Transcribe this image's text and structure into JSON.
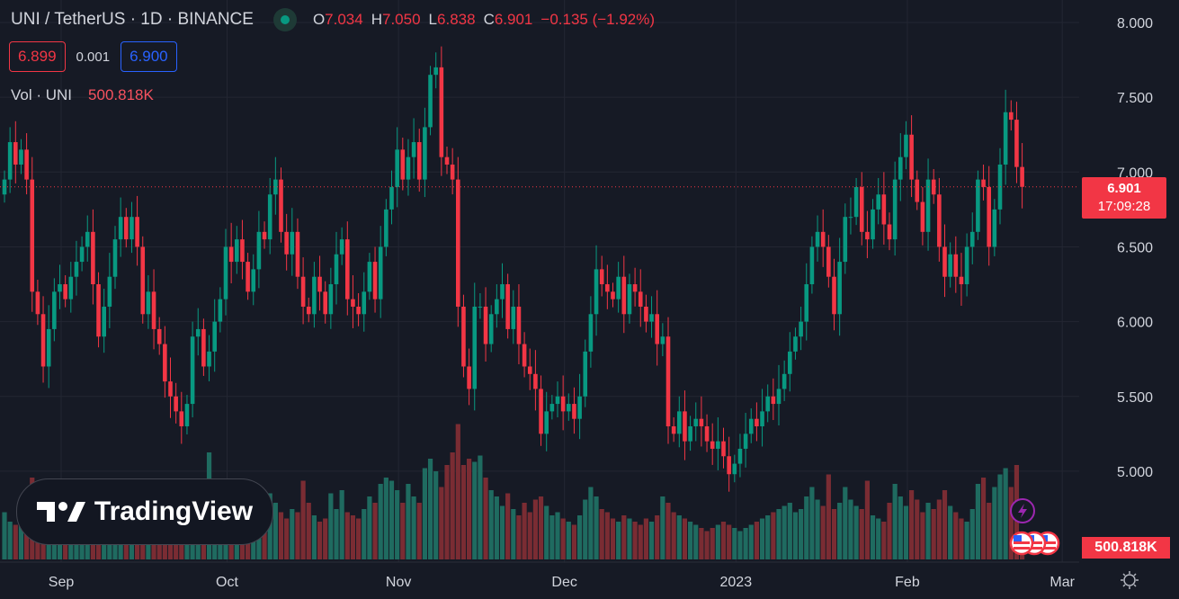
{
  "header": {
    "symbol": "UNI / TetherUS · 1D · BINANCE",
    "ohlc": {
      "o_label": "O",
      "o": "7.034",
      "h_label": "H",
      "h": "7.050",
      "l_label": "L",
      "l": "6.838",
      "c_label": "C",
      "c": "6.901",
      "change": "−0.135 (−1.92%)"
    },
    "bid": "6.899",
    "spread": "0.001",
    "ask": "6.900",
    "volume_label": "Vol · UNI",
    "volume_value": "500.818K"
  },
  "logo_text": "TradingView",
  "price_tag": {
    "price": "6.901",
    "countdown": "17:09:28"
  },
  "volume_tag": "500.818K",
  "colors": {
    "background": "#161a25",
    "grid": "#232632",
    "up": "#089981",
    "down": "#f23645",
    "up_vol": "#1f6b60",
    "down_vol": "#7a2c33"
  },
  "chart_data": {
    "type": "candlestick",
    "title": "UNI / TetherUS · 1D · BINANCE",
    "ylim": [
      4.85,
      8.1
    ],
    "y_ticks": [
      "8.000",
      "7.500",
      "7.000",
      "6.500",
      "6.000",
      "5.500",
      "5.000"
    ],
    "y_tick_values": [
      8.0,
      7.5,
      7.0,
      6.5,
      6.0,
      5.5,
      5.0
    ],
    "x_ticks": [
      {
        "label": "Sep",
        "day": 11
      },
      {
        "label": "Oct",
        "day": 41
      },
      {
        "label": "Nov",
        "day": 72
      },
      {
        "label": "Dec",
        "day": 102
      },
      {
        "label": "2023",
        "day": 133
      },
      {
        "label": "Feb",
        "day": 164
      },
      {
        "label": "Mar",
        "day": 192
      }
    ],
    "first_open": 6.85,
    "close": [
      6.95,
      7.2,
      7.05,
      7.15,
      6.95,
      6.2,
      6.05,
      5.7,
      5.95,
      6.2,
      6.25,
      6.15,
      6.3,
      6.4,
      6.5,
      6.6,
      6.25,
      5.9,
      6.1,
      6.3,
      6.55,
      6.7,
      6.55,
      6.7,
      6.5,
      6.05,
      6.2,
      5.95,
      5.85,
      5.6,
      5.5,
      5.4,
      5.3,
      5.45,
      5.9,
      5.95,
      5.7,
      5.8,
      6.0,
      6.15,
      6.5,
      6.4,
      6.55,
      6.4,
      6.2,
      6.35,
      6.6,
      6.55,
      6.85,
      6.95,
      6.6,
      6.45,
      6.6,
      6.3,
      6.1,
      6.05,
      6.3,
      6.2,
      6.05,
      6.25,
      6.45,
      6.55,
      6.15,
      6.1,
      6.05,
      6.2,
      6.4,
      6.15,
      6.5,
      6.75,
      6.9,
      7.15,
      6.95,
      7.1,
      7.2,
      6.95,
      7.3,
      7.65,
      7.7,
      7.1,
      7.05,
      6.95,
      6.1,
      5.7,
      5.55,
      6.1,
      6.1,
      5.85,
      6.05,
      6.15,
      6.25,
      5.95,
      6.1,
      5.85,
      5.7,
      5.65,
      5.55,
      5.25,
      5.4,
      5.45,
      5.5,
      5.4,
      5.45,
      5.35,
      5.5,
      5.8,
      6.05,
      6.35,
      6.25,
      6.2,
      6.15,
      6.3,
      6.05,
      6.25,
      6.2,
      6.1,
      6.0,
      6.05,
      5.85,
      5.9,
      5.3,
      5.25,
      5.4,
      5.2,
      5.3,
      5.35,
      5.3,
      5.2,
      5.15,
      5.2,
      5.1,
      4.98,
      5.05,
      5.15,
      5.25,
      5.35,
      5.3,
      5.4,
      5.5,
      5.45,
      5.55,
      5.65,
      5.8,
      5.9,
      6.0,
      6.25,
      6.5,
      6.6,
      6.5,
      6.3,
      6.05,
      6.4,
      6.7,
      6.7,
      6.9,
      6.6,
      6.55,
      6.75,
      6.85,
      6.65,
      6.55,
      6.95,
      7.1,
      7.25,
      6.95,
      6.8,
      6.6,
      6.95,
      6.85,
      6.5,
      6.3,
      6.45,
      6.3,
      6.25,
      6.5,
      6.6,
      6.95,
      6.9,
      6.5,
      6.75,
      7.05,
      7.4,
      7.35,
      7.034,
      6.901
    ],
    "volume_millions": [
      1.5,
      1.2,
      1.1,
      1.3,
      1.0,
      2.6,
      2.0,
      1.8,
      1.4,
      1.1,
      1.0,
      0.9,
      1.2,
      1.1,
      1.3,
      1.4,
      1.6,
      2.0,
      1.3,
      1.2,
      1.5,
      1.4,
      1.2,
      1.1,
      1.3,
      2.2,
      1.6,
      1.4,
      1.5,
      1.8,
      2.0,
      1.9,
      1.7,
      1.5,
      2.1,
      1.3,
      1.2,
      3.4,
      1.6,
      1.5,
      2.2,
      1.6,
      1.4,
      1.2,
      1.5,
      1.3,
      1.6,
      1.4,
      2.1,
      1.8,
      1.5,
      1.3,
      1.6,
      1.5,
      2.5,
      1.8,
      1.4,
      1.2,
      1.3,
      2.1,
      1.6,
      2.2,
      1.5,
      1.4,
      1.3,
      1.6,
      2.0,
      1.8,
      2.4,
      2.6,
      2.5,
      2.2,
      1.8,
      2.4,
      2.0,
      1.8,
      2.9,
      3.2,
      2.8,
      2.3,
      3.0,
      3.4,
      4.3,
      3.0,
      3.2,
      3.1,
      3.3,
      2.6,
      2.2,
      2.0,
      1.7,
      2.1,
      1.6,
      1.4,
      1.8,
      1.5,
      1.9,
      2.0,
      1.7,
      1.4,
      1.5,
      1.3,
      1.2,
      1.1,
      1.4,
      1.9,
      2.3,
      2.0,
      1.6,
      1.5,
      1.3,
      1.2,
      1.4,
      1.3,
      1.2,
      1.1,
      1.3,
      1.2,
      1.4,
      2.0,
      1.8,
      1.5,
      1.4,
      1.3,
      1.2,
      1.1,
      1.0,
      0.9,
      1.0,
      1.1,
      1.2,
      1.1,
      1.0,
      0.9,
      1.0,
      1.1,
      1.2,
      1.3,
      1.4,
      1.5,
      1.6,
      1.7,
      1.8,
      1.5,
      1.6,
      2.0,
      2.3,
      1.9,
      1.7,
      2.7,
      1.6,
      1.8,
      2.3,
      1.9,
      1.7,
      1.6,
      2.5,
      1.4,
      1.3,
      1.2,
      1.8,
      2.4,
      2.0,
      1.7,
      2.2,
      1.9,
      1.5,
      1.8,
      1.6,
      1.9,
      2.2,
      1.7,
      1.5,
      1.3,
      1.2,
      1.6,
      2.4,
      2.6,
      1.8,
      2.3,
      2.7,
      2.9,
      2.3,
      3.0,
      0.5
    ],
    "last_price": 6.901
  }
}
